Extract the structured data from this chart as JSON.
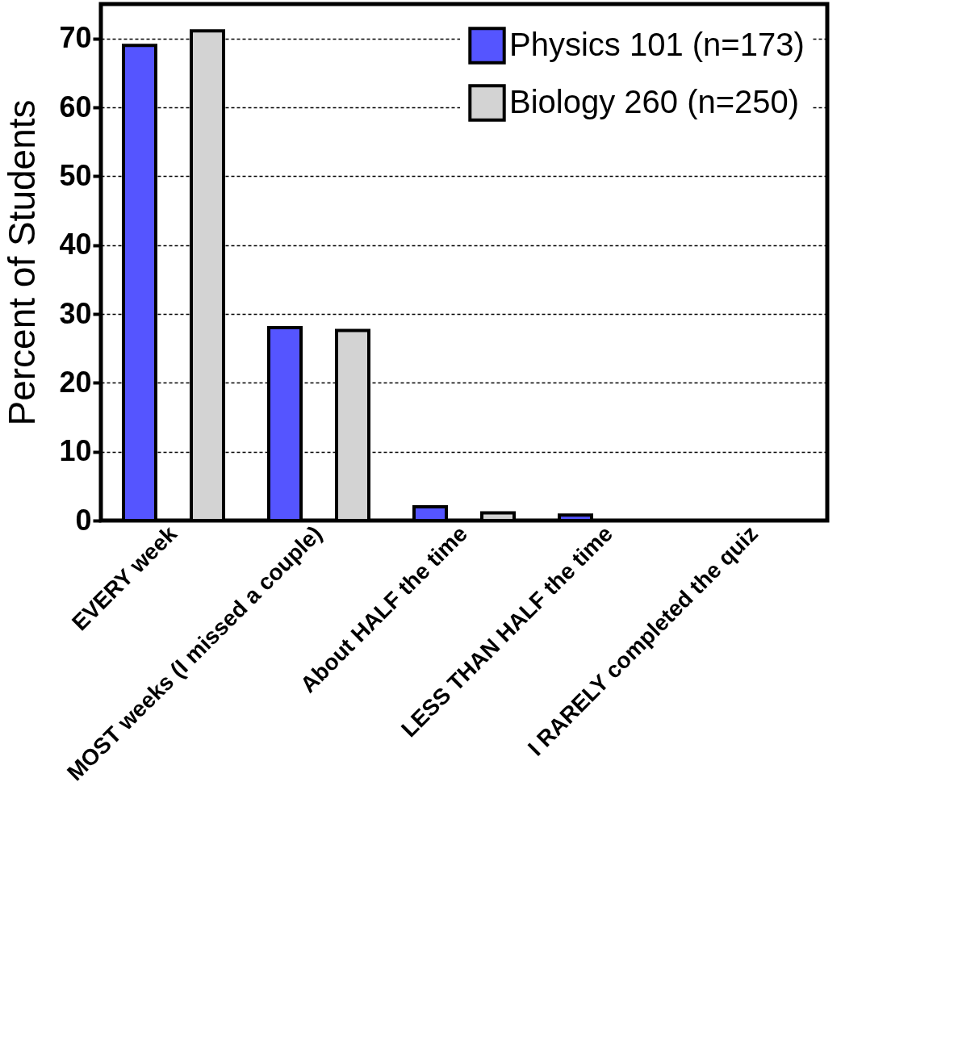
{
  "chart_data": {
    "type": "bar",
    "ylabel": "Percent of Students",
    "categories": [
      "EVERY week",
      "MOST weeks (I missed a couple)",
      "About HALF the time",
      "LESS THAN HALF the time",
      "I RARELY completed the quiz"
    ],
    "series": [
      {
        "name": "Physics 101 (n=173)",
        "color": "#5555ff",
        "values": [
          69.0,
          28.0,
          2.0,
          0.8,
          null
        ]
      },
      {
        "name": "Biology 260 (n=250)",
        "color": "#d3d3d3",
        "values": [
          71.1,
          27.6,
          1.1,
          null,
          null
        ]
      }
    ],
    "ylim": [
      0,
      75
    ],
    "yticks": [
      0,
      10,
      20,
      30,
      40,
      50,
      60,
      70
    ],
    "grid": "y",
    "legend": "top right"
  }
}
